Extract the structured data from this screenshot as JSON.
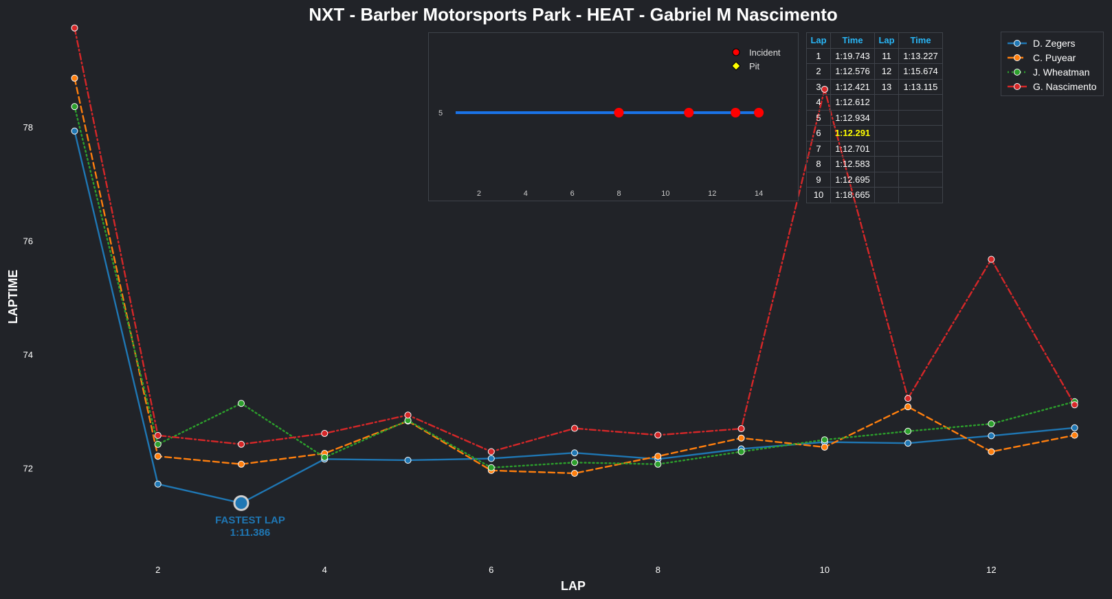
{
  "chart_data": {
    "type": "line",
    "title": "NXT - Barber Motorsports Park - HEAT - Gabriel M Nascimento",
    "xlabel": "LAP",
    "ylabel": "LAPTIME",
    "xlim": [
      0.6,
      13.3
    ],
    "ylim": [
      70.4,
      79.8
    ],
    "xticks": [
      2,
      4,
      6,
      8,
      10,
      12
    ],
    "yticks": [
      72,
      74,
      76,
      78
    ],
    "grid": false,
    "legend_position": "top-right",
    "x": [
      1,
      2,
      3,
      4,
      5,
      6,
      7,
      8,
      9,
      10,
      11,
      12,
      13
    ],
    "series": [
      {
        "name": "D. Zegers",
        "color": "#1f77b4",
        "dash": "solid",
        "values": [
          77.93,
          71.72,
          71.386,
          72.16,
          72.14,
          72.17,
          72.27,
          72.16,
          72.34,
          72.46,
          72.44,
          72.57,
          72.71
        ]
      },
      {
        "name": "C. Puyear",
        "color": "#ff7f0e",
        "dash": "dashed",
        "values": [
          78.86,
          72.21,
          72.07,
          72.26,
          72.83,
          71.96,
          71.91,
          72.21,
          72.53,
          72.37,
          73.08,
          72.29,
          72.58
        ]
      },
      {
        "name": "J. Wheatman",
        "color": "#2ca02c",
        "dash": "dotted",
        "values": [
          78.36,
          72.42,
          73.14,
          72.19,
          72.84,
          72.01,
          72.1,
          72.07,
          72.29,
          72.5,
          72.65,
          72.78,
          73.17
        ]
      },
      {
        "name": "G. Nascimento",
        "color": "#d62728",
        "dash": "dashdot",
        "values": [
          79.743,
          72.576,
          72.421,
          72.612,
          72.934,
          72.291,
          72.701,
          72.583,
          72.695,
          78.665,
          73.227,
          75.674,
          73.115
        ]
      }
    ],
    "annotation": {
      "label": "FASTEST LAP",
      "value_text": "1:11.386",
      "x": 3,
      "y": 71.386,
      "color": "#1f77b4"
    },
    "inset": {
      "type": "scatter",
      "xlim": [
        0.5,
        15.5
      ],
      "xticks": [
        2,
        4,
        6,
        8,
        10,
        12,
        14
      ],
      "yticks": [
        5
      ],
      "track": {
        "y": 5,
        "x_start": 1,
        "x_end": 14,
        "color": "#1a73e8"
      },
      "incidents": [
        8,
        11,
        13,
        14
      ],
      "pits": [],
      "legend": [
        {
          "label": "Incident",
          "color": "#ff0000",
          "marker": "circle"
        },
        {
          "label": "Pit",
          "color": "#ffff00",
          "marker": "diamond"
        }
      ]
    }
  },
  "table": {
    "headers": [
      "Lap",
      "Time",
      "Lap",
      "Time"
    ],
    "rows": [
      [
        "1",
        "1:19.743",
        "11",
        "1:13.227"
      ],
      [
        "2",
        "1:12.576",
        "12",
        "1:15.674"
      ],
      [
        "3",
        "1:12.421",
        "13",
        "1:13.115"
      ],
      [
        "4",
        "1:12.612",
        "",
        ""
      ],
      [
        "5",
        "1:12.934",
        "",
        ""
      ],
      [
        "6",
        "1:12.291",
        "",
        ""
      ],
      [
        "7",
        "1:12.701",
        "",
        ""
      ],
      [
        "8",
        "1:12.583",
        "",
        ""
      ],
      [
        "9",
        "1:12.695",
        "",
        ""
      ],
      [
        "10",
        "1:18.665",
        "",
        ""
      ]
    ],
    "fastest_lap_row": 5,
    "highlight_color": "#ffff00",
    "header_color": "#29b6f6"
  }
}
